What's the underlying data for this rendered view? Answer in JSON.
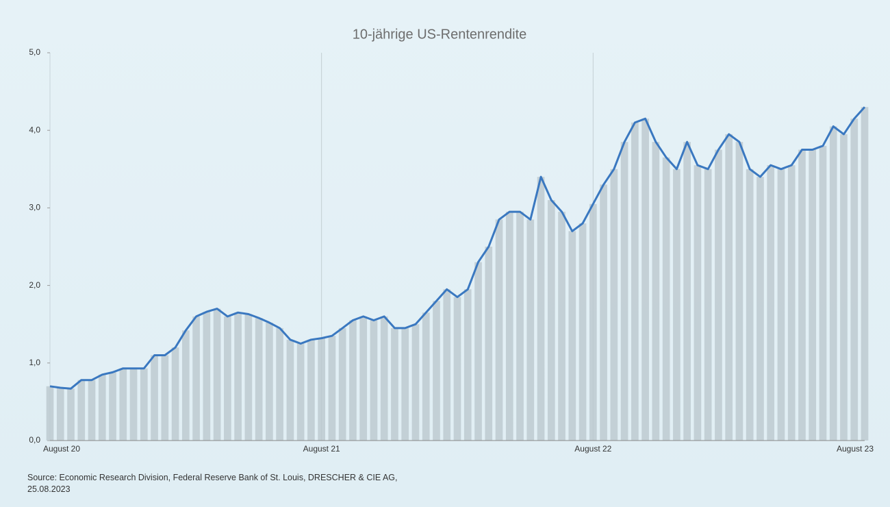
{
  "chart_data": {
    "type": "line",
    "title": "10-jährige US-Rentenrendite",
    "source": "Source: Economic Research Division, Federal Reserve Bank of St. Louis, DRESCHER & CIE AG, 25.08.2023",
    "categories": [
      "August 20",
      null,
      null,
      null,
      null,
      null,
      null,
      null,
      null,
      null,
      null,
      null,
      null,
      null,
      null,
      null,
      null,
      null,
      null,
      null,
      null,
      null,
      null,
      null,
      null,
      null,
      "August 21",
      null,
      null,
      null,
      null,
      null,
      null,
      null,
      null,
      null,
      null,
      null,
      null,
      null,
      null,
      null,
      null,
      null,
      null,
      null,
      null,
      null,
      null,
      null,
      null,
      null,
      "August 22",
      null,
      null,
      null,
      null,
      null,
      null,
      null,
      null,
      null,
      null,
      null,
      null,
      null,
      null,
      null,
      null,
      null,
      null,
      null,
      null,
      null,
      null,
      null,
      null,
      null,
      "August 23"
    ],
    "series": [
      {
        "name": "10-jährige US-Rentenrendite",
        "color": "#3a78c0",
        "values": [
          0.7,
          0.68,
          0.67,
          0.78,
          0.78,
          0.85,
          0.88,
          0.93,
          0.93,
          0.93,
          1.1,
          1.1,
          1.2,
          1.42,
          1.6,
          1.66,
          1.7,
          1.6,
          1.65,
          1.63,
          1.58,
          1.52,
          1.45,
          1.3,
          1.25,
          1.3,
          1.32,
          1.35,
          1.45,
          1.55,
          1.6,
          1.55,
          1.6,
          1.45,
          1.45,
          1.5,
          1.65,
          1.8,
          1.95,
          1.85,
          1.95,
          2.3,
          2.5,
          2.85,
          2.95,
          2.95,
          2.85,
          3.4,
          3.1,
          2.95,
          2.7,
          2.8,
          3.05,
          3.3,
          3.5,
          3.85,
          4.1,
          4.15,
          3.85,
          3.65,
          3.5,
          3.85,
          3.55,
          3.5,
          3.75,
          3.95,
          3.85,
          3.5,
          3.4,
          3.55,
          3.5,
          3.55,
          3.75,
          3.75,
          3.8,
          4.05,
          3.95,
          4.15,
          4.3
        ]
      }
    ],
    "ylim": [
      0,
      5
    ],
    "yticks": [
      {
        "value": 0,
        "label": "0,0"
      },
      {
        "value": 1,
        "label": "1,0"
      },
      {
        "value": 2,
        "label": "2,0"
      },
      {
        "value": 3,
        "label": "3,0"
      },
      {
        "value": 4,
        "label": "4,0"
      },
      {
        "value": 5,
        "label": "5,0"
      }
    ],
    "fill_color": "#bcc8ce",
    "grid": true
  }
}
